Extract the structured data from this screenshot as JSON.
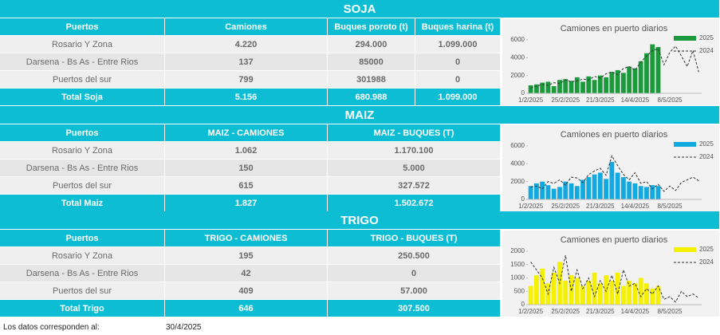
{
  "sections": [
    {
      "title": "SOJA",
      "headers": [
        "Puertos",
        "Camiones",
        "Buques poroto (t)",
        "Buques harina (t)"
      ],
      "rows": [
        [
          "Rosario Y Zona",
          "4.220",
          "294.000",
          "1.099.000"
        ],
        [
          "Darsena - Bs As - Entre Rios",
          "137",
          "85000",
          "0"
        ],
        [
          "Puertos del sur",
          "799",
          "301988",
          "0"
        ]
      ],
      "total": [
        "Total Soja",
        "5.156",
        "680.988",
        "1.099.000"
      ],
      "chart": {
        "type": "bar",
        "title": "Camiones en puerto diarios",
        "categories": [
          "1/2/2025",
          null,
          null,
          null,
          null,
          null,
          "25/2/2025",
          null,
          null,
          null,
          null,
          null,
          "21/3/2025",
          null,
          null,
          null,
          null,
          null,
          "14/4/2025",
          null,
          null,
          null,
          null,
          null,
          "8/5/2025",
          null,
          null,
          null,
          null,
          null
        ],
        "ylim": [
          0,
          6000
        ],
        "yticks": [
          0,
          2000,
          4000,
          6000
        ],
        "series": [
          {
            "name": "2025",
            "color": "#1a9a3a",
            "kind": "bar",
            "values": [
              900,
              1000,
              1200,
              1300,
              800,
              1500,
              1600,
              1400,
              1800,
              1300,
              1900,
              1500,
              2000,
              1800,
              2400,
              2600,
              2300,
              3000,
              2800,
              3600,
              4500,
              5500,
              5200,
              null,
              null,
              null,
              null,
              null,
              null,
              null
            ]
          },
          {
            "name": "2024",
            "color": "#333333",
            "kind": "line",
            "values": [
              600,
              800,
              1000,
              900,
              1200,
              1100,
              1500,
              1300,
              1400,
              1600,
              1500,
              1900,
              1700,
              2200,
              2400,
              2100,
              2800,
              3000,
              2600,
              3500,
              4200,
              4800,
              5000,
              3200,
              4600,
              5300,
              4200,
              3000,
              4800,
              2400
            ]
          }
        ]
      }
    },
    {
      "title": "MAIZ",
      "headers": [
        "Puertos",
        "MAIZ - CAMIONES",
        "MAIZ - BUQUES (T)"
      ],
      "rows": [
        [
          "Rosario Y Zona",
          "1.062",
          "1.170.100"
        ],
        [
          "Darsena - Bs As - Entre Rios",
          "150",
          "5.000"
        ],
        [
          "Puertos del sur",
          "615",
          "327.572"
        ]
      ],
      "total": [
        "Total Maiz",
        "1.827",
        "1.502.672"
      ],
      "chart": {
        "type": "bar",
        "title": "Camiones en puerto diarios",
        "categories": [
          "1/2/2025",
          null,
          null,
          null,
          null,
          null,
          "25/2/2025",
          null,
          null,
          null,
          null,
          null,
          "21/3/2025",
          null,
          null,
          null,
          null,
          null,
          "14/4/2025",
          null,
          null,
          null,
          null,
          null,
          "8/5/2025",
          null,
          null,
          null,
          null,
          null
        ],
        "ylim": [
          0,
          6000
        ],
        "yticks": [
          0,
          2000,
          4000,
          6000
        ],
        "series": [
          {
            "name": "2025",
            "color": "#12a8e0",
            "kind": "bar",
            "values": [
              1500,
              1800,
              2000,
              1600,
              1200,
              1400,
              2000,
              1800,
              1500,
              2200,
              2500,
              2800,
              3000,
              2300,
              4200,
              3000,
              2500,
              2000,
              1800,
              1500,
              1400,
              1600,
              1500,
              null,
              null,
              null,
              null,
              null,
              null,
              null
            ]
          },
          {
            "name": "2024",
            "color": "#333333",
            "kind": "line",
            "values": [
              1400,
              1500,
              1200,
              2000,
              1800,
              2200,
              1600,
              2500,
              2400,
              1900,
              2800,
              3200,
              3500,
              2700,
              4900,
              3800,
              2800,
              2200,
              3000,
              1800,
              2000,
              1200,
              1700,
              900,
              1500,
              1000,
              1900,
              2200,
              2500,
              2100
            ]
          }
        ]
      }
    },
    {
      "title": "TRIGO",
      "headers": [
        "Puertos",
        "TRIGO - CAMIONES",
        "TRIGO - BUQUES (T)"
      ],
      "rows": [
        [
          "Rosario Y Zona",
          "195",
          "250.500"
        ],
        [
          "Darsena - Bs As - Entre Rios",
          "42",
          "0"
        ],
        [
          "Puertos del sur",
          "409",
          "57.000"
        ]
      ],
      "total": [
        "Total Trigo",
        "646",
        "307.500"
      ],
      "chart": {
        "type": "bar",
        "title": "Camiones en puerto diarios",
        "categories": [
          "1/2/2025",
          null,
          null,
          null,
          null,
          null,
          "25/2/2025",
          null,
          null,
          null,
          null,
          null,
          "21/3/2025",
          null,
          null,
          null,
          null,
          null,
          "14/4/2025",
          null,
          null,
          null,
          null,
          null,
          "8/5/2025",
          null,
          null,
          null,
          null,
          null
        ],
        "ylim": [
          0,
          2000
        ],
        "yticks": [
          0,
          500,
          1000,
          1500,
          2000
        ],
        "series": [
          {
            "name": "2025",
            "color": "#f5f000",
            "kind": "bar",
            "values": [
              700,
              1100,
              1350,
              800,
              1200,
              1600,
              900,
              1100,
              1000,
              700,
              900,
              1200,
              800,
              1100,
              900,
              1200,
              700,
              900,
              800,
              1000,
              800,
              600,
              700,
              null,
              null,
              null,
              null,
              null,
              null,
              null
            ]
          },
          {
            "name": "2024",
            "color": "#333333",
            "kind": "line",
            "values": [
              1600,
              1300,
              1000,
              400,
              1400,
              800,
              1850,
              500,
              1300,
              600,
              1000,
              300,
              900,
              500,
              1100,
              400,
              1300,
              700,
              800,
              300,
              600,
              400,
              700,
              200,
              300,
              100,
              500,
              300,
              400,
              250
            ]
          }
        ]
      }
    }
  ],
  "footer": {
    "label": "Los datos corresponden al:",
    "date": "30/4/2025"
  }
}
